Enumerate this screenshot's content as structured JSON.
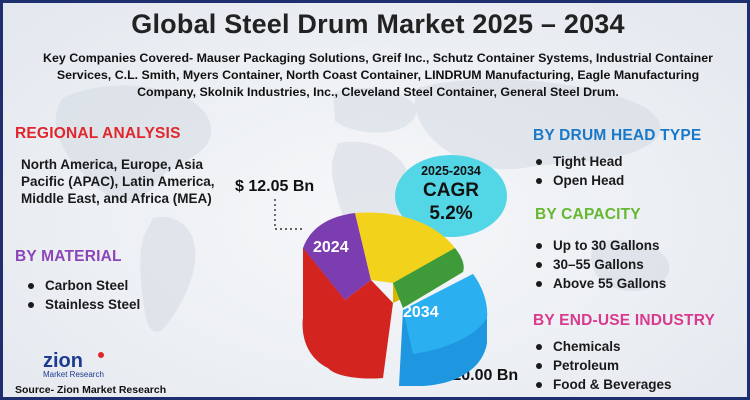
{
  "title": "Global Steel Drum Market 2025 – 2034",
  "companies": "Key Companies Covered- Mauser Packaging Solutions, Greif Inc., Schutz Container Systems, Industrial Container Services, C.L. Smith, Myers Container, North Coast Container, LINDRUM Manufacturing, Eagle Manufacturing Company, Skolnik Industries, Inc., Cleveland Steel Container, General Steel Drum.",
  "regional": {
    "title": "REGIONAL ANALYSIS",
    "text": "North America, Europe, Asia Pacific (APAC), Latin America, Middle East, and Africa (MEA)"
  },
  "material": {
    "title": "BY MATERIAL",
    "items": [
      "Carbon Steel",
      "Stainless Steel"
    ]
  },
  "drum_head": {
    "title": "BY DRUM HEAD TYPE",
    "items": [
      "Tight Head",
      "Open Head"
    ]
  },
  "capacity": {
    "title": "BY CAPACITY",
    "items": [
      "Up to 30 Gallons",
      "30–55 Gallons",
      "Above 55 Gallons"
    ]
  },
  "end_use": {
    "title": "BY END-USE INDUSTRY",
    "items": [
      "Chemicals",
      "Petroleum",
      "Food & Beverages"
    ]
  },
  "market": {
    "value_2024": "$ 12.05 Bn",
    "value_2034": "$ 20.00 Bn",
    "label_2024": "2024",
    "label_2034": "2034"
  },
  "cagr": {
    "years": "2025-2034",
    "label": "CAGR",
    "value": "5.2%"
  },
  "logo": {
    "name": "zion",
    "sub": "Market Research"
  },
  "source": "Source- Zion Market Research",
  "colors": {
    "regional": "#e0262b",
    "material": "#8c45b8",
    "drum_head": "#1a78c9",
    "capacity": "#65b82f",
    "end_use": "#d93a8e",
    "cagr_bubble": "#53d6e6",
    "border": "#1d2f6f"
  }
}
